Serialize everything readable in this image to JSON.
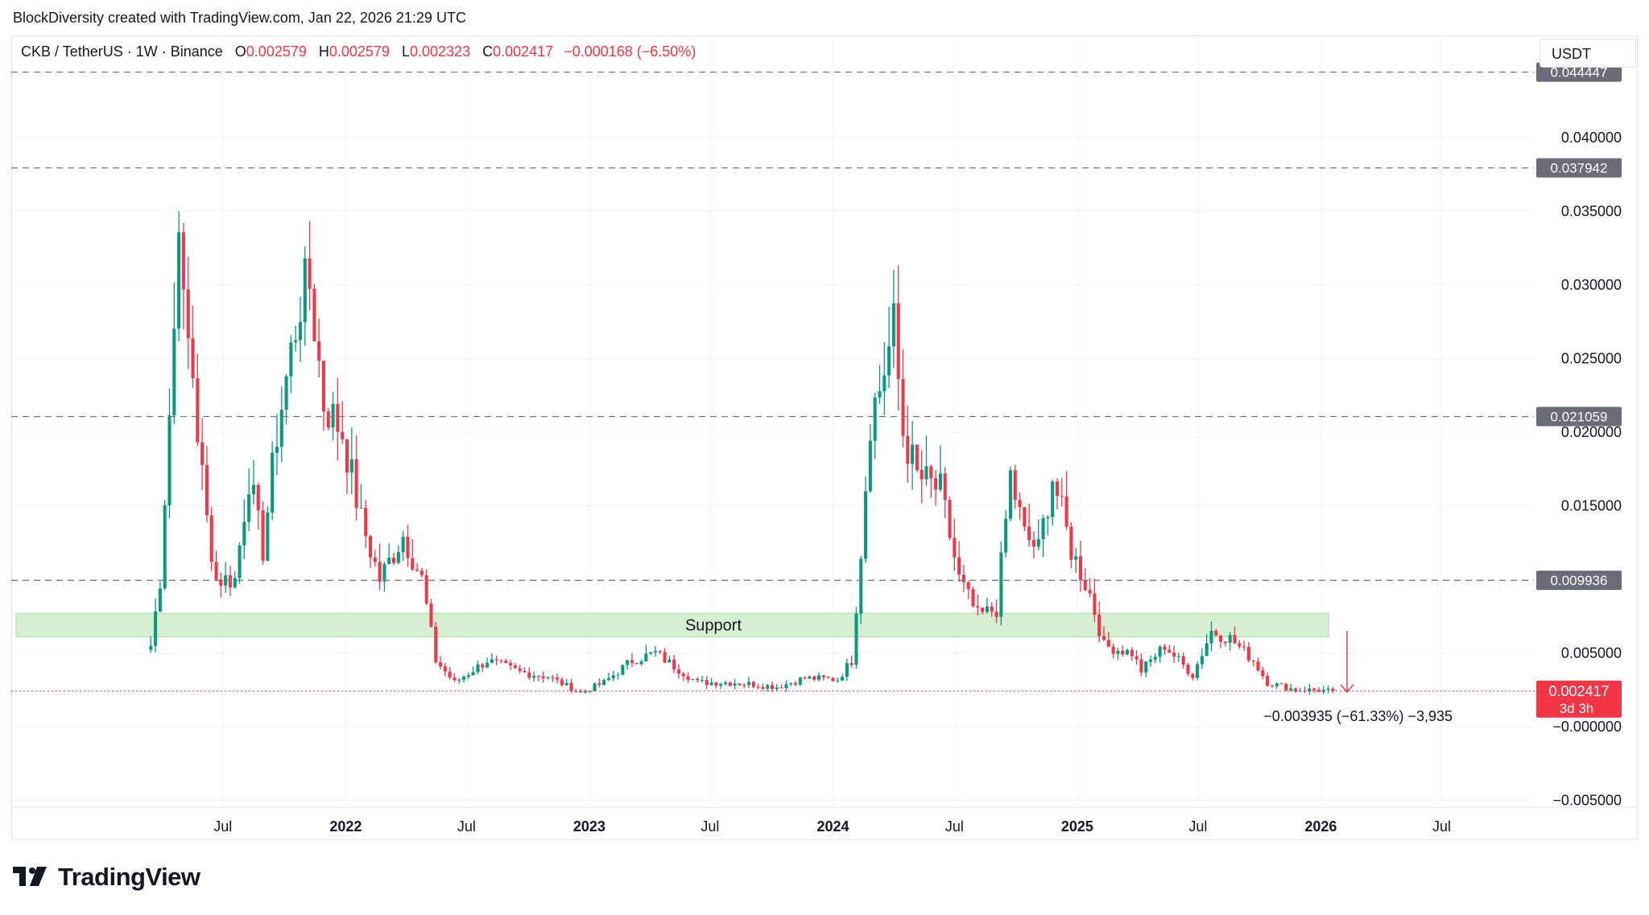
{
  "attribution": "BlockDiversity created with TradingView.com, Jan 22, 2026 21:29 UTC",
  "legend": {
    "symbol": "CKB / TetherUS · 1W · Binance",
    "open_label": "O",
    "open": "0.002579",
    "high_label": "H",
    "high": "0.002579",
    "low_label": "L",
    "low": "0.002323",
    "close_label": "C",
    "close": "0.002417",
    "change": "−0.000168 (−6.50%)"
  },
  "currency_button": "USDT",
  "brand": "TradingView",
  "colors": {
    "up": "#089981",
    "down": "#f23645",
    "support_fill": "#d6eed2",
    "level_label_bg": "#6a6d78",
    "grid": "#f0f3fa"
  },
  "chart_data": {
    "type": "candlestick",
    "title": "",
    "xlabel": "",
    "ylabel": "",
    "ylim": [
      -0.0052,
      0.045
    ],
    "grid": true,
    "y_ticks": [
      "0.040000",
      "0.035000",
      "0.030000",
      "0.025000",
      "0.020000",
      "0.015000",
      "0.005000",
      "−0.000000",
      "−0.005000"
    ],
    "x_ticks": [
      "Jul",
      "2022",
      "Jul",
      "2023",
      "Jul",
      "2024",
      "Jul",
      "2025",
      "Jul",
      "2026",
      "Jul"
    ],
    "horizontal_levels": [
      0.044447,
      0.037942,
      0.021059,
      0.009936
    ],
    "horizontal_level_labels": [
      "0.044447",
      "0.037942",
      "0.021059",
      "0.009936"
    ],
    "support_zone": {
      "label": "Support",
      "from": 0.0061,
      "to": 0.0077
    },
    "last_price": {
      "value": "0.002417",
      "countdown": "3d 3h"
    },
    "measure_annotation": "−0.003935 (−61.33%) −3,935",
    "waypoints": [
      {
        "date": "2021-03-15",
        "price": 0.0055
      },
      {
        "date": "2021-03-29",
        "price": 0.01
      },
      {
        "date": "2021-04-19",
        "price": 0.027
      },
      {
        "date": "2021-04-26",
        "price": 0.036
      },
      {
        "date": "2021-05-03",
        "price": 0.028
      },
      {
        "date": "2021-05-17",
        "price": 0.024
      },
      {
        "date": "2021-05-24",
        "price": 0.02
      },
      {
        "date": "2021-06-07",
        "price": 0.014
      },
      {
        "date": "2021-06-21",
        "price": 0.01
      },
      {
        "date": "2021-07-19",
        "price": 0.01
      },
      {
        "date": "2021-08-09",
        "price": 0.017
      },
      {
        "date": "2021-08-30",
        "price": 0.012
      },
      {
        "date": "2021-09-20",
        "price": 0.02
      },
      {
        "date": "2021-10-25",
        "price": 0.029
      },
      {
        "date": "2021-11-08",
        "price": 0.03
      },
      {
        "date": "2021-11-29",
        "price": 0.022
      },
      {
        "date": "2021-12-27",
        "price": 0.02
      },
      {
        "date": "2022-01-24",
        "price": 0.014
      },
      {
        "date": "2022-02-21",
        "price": 0.01
      },
      {
        "date": "2022-03-28",
        "price": 0.013
      },
      {
        "date": "2022-04-25",
        "price": 0.01
      },
      {
        "date": "2022-05-16",
        "price": 0.0045
      },
      {
        "date": "2022-06-13",
        "price": 0.003
      },
      {
        "date": "2022-08-01",
        "price": 0.0045
      },
      {
        "date": "2022-09-19",
        "price": 0.0037
      },
      {
        "date": "2022-10-31",
        "price": 0.0034
      },
      {
        "date": "2022-12-19",
        "price": 0.0023
      },
      {
        "date": "2023-01-23",
        "price": 0.003
      },
      {
        "date": "2023-03-06",
        "price": 0.0045
      },
      {
        "date": "2023-04-10",
        "price": 0.005
      },
      {
        "date": "2023-06-12",
        "price": 0.003
      },
      {
        "date": "2023-08-07",
        "price": 0.003
      },
      {
        "date": "2023-10-09",
        "price": 0.0027
      },
      {
        "date": "2023-11-20",
        "price": 0.0033
      },
      {
        "date": "2024-01-08",
        "price": 0.0032
      },
      {
        "date": "2024-01-29",
        "price": 0.0045
      },
      {
        "date": "2024-02-12",
        "price": 0.012
      },
      {
        "date": "2024-02-26",
        "price": 0.021
      },
      {
        "date": "2024-03-11",
        "price": 0.023
      },
      {
        "date": "2024-04-01",
        "price": 0.027
      },
      {
        "date": "2024-04-15",
        "price": 0.02
      },
      {
        "date": "2024-05-06",
        "price": 0.017
      },
      {
        "date": "2024-06-10",
        "price": 0.016
      },
      {
        "date": "2024-07-08",
        "price": 0.01
      },
      {
        "date": "2024-08-05",
        "price": 0.0075
      },
      {
        "date": "2024-09-02",
        "price": 0.008
      },
      {
        "date": "2024-09-23",
        "price": 0.017
      },
      {
        "date": "2024-10-14",
        "price": 0.013
      },
      {
        "date": "2024-11-04",
        "price": 0.012
      },
      {
        "date": "2024-11-25",
        "price": 0.017
      },
      {
        "date": "2024-12-23",
        "price": 0.012
      },
      {
        "date": "2025-01-20",
        "price": 0.009
      },
      {
        "date": "2025-02-10",
        "price": 0.0055
      },
      {
        "date": "2025-03-24",
        "price": 0.005
      },
      {
        "date": "2025-04-07",
        "price": 0.0038
      },
      {
        "date": "2025-05-12",
        "price": 0.0055
      },
      {
        "date": "2025-06-23",
        "price": 0.0035
      },
      {
        "date": "2025-07-21",
        "price": 0.0065
      },
      {
        "date": "2025-08-18",
        "price": 0.006
      },
      {
        "date": "2025-09-22",
        "price": 0.0045
      },
      {
        "date": "2025-10-13",
        "price": 0.003
      },
      {
        "date": "2025-11-24",
        "price": 0.0025
      },
      {
        "date": "2025-12-15",
        "price": 0.0025
      },
      {
        "date": "2026-01-19",
        "price": 0.002417
      }
    ]
  }
}
